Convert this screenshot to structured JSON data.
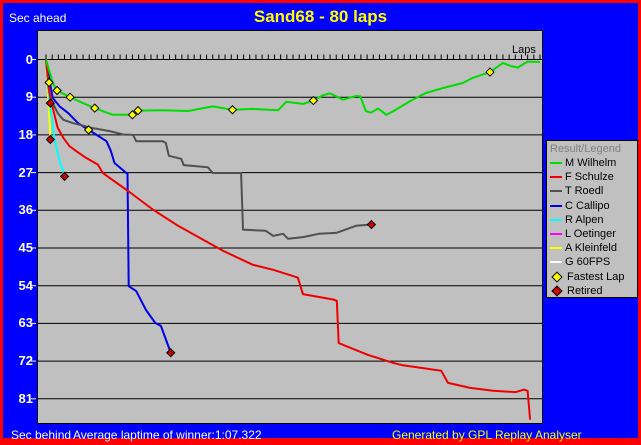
{
  "window": {
    "title": "Sand68 - 80 laps",
    "top_left_label": "Sec ahead",
    "bottom_left_label": "Sec behind",
    "average_laptime_text": "Average laptime of winner:1:07.322",
    "credit": "Generated by GPL Replay Analyser"
  },
  "colors": {
    "frame": "#FF0000",
    "background": "#0000FF",
    "plot_bg": "#C0C0C0",
    "grid": "#000000",
    "title_text": "#FFFF00",
    "label_text": "#FFFFFF",
    "legend_bg": "#C0C0C0",
    "legend_title": "#808080",
    "fastest_lap": "#FFFF00",
    "retired": "#CC0000"
  },
  "legend": {
    "title": "Result/Legend",
    "entries": [
      {
        "label": "M Wilhelm",
        "color": "#00DD00",
        "marker": "line"
      },
      {
        "label": "F Schulze",
        "color": "#EE0000",
        "marker": "line"
      },
      {
        "label": "T Roedl",
        "color": "#505050",
        "marker": "line"
      },
      {
        "label": "C Callipo",
        "color": "#0000E8",
        "marker": "line"
      },
      {
        "label": "R Alpen",
        "color": "#00FFFF",
        "marker": "line"
      },
      {
        "label": "L Oetinger",
        "color": "#FF00FF",
        "marker": "line"
      },
      {
        "label": "A Kleinfeld",
        "color": "#FFFF00",
        "marker": "line"
      },
      {
        "label": "G 60FPS",
        "color": "#FFFFFF",
        "marker": "line"
      },
      {
        "label": "Fastest Lap",
        "color": "#FFFF00",
        "marker": "diamond"
      },
      {
        "label": "Retired",
        "color": "#CC0000",
        "marker": "diamond"
      }
    ]
  },
  "chart_data": {
    "type": "line",
    "title": "Sand68 - 80 laps",
    "x_axis": {
      "label": "Laps",
      "min": 0,
      "max": 80,
      "tick_interval": 1
    },
    "y_axis": {
      "label_top": "Sec ahead",
      "label_bottom": "Sec behind",
      "ticks": [
        0,
        9,
        18,
        27,
        36,
        45,
        54,
        63,
        72,
        81
      ],
      "orientation": "seconds behind winner average, increasing downward"
    },
    "series": [
      {
        "name": "M Wilhelm",
        "color": "#00DD00",
        "points": [
          [
            0,
            0
          ],
          [
            1.1,
            5.6
          ],
          [
            1.8,
            7.4
          ],
          [
            3.9,
            9
          ],
          [
            6,
            10.4
          ],
          [
            7.9,
            11.6
          ],
          [
            10.8,
            13.2
          ],
          [
            14,
            13.2
          ],
          [
            14.9,
            12.2
          ],
          [
            18.9,
            12.1
          ],
          [
            23,
            12.3
          ],
          [
            27,
            11.2
          ],
          [
            30.2,
            12
          ],
          [
            33.5,
            11.8
          ],
          [
            37.6,
            12.1
          ],
          [
            38.9,
            10.1
          ],
          [
            41.6,
            10.6
          ],
          [
            43.3,
            9.8
          ],
          [
            44.9,
            8.5
          ],
          [
            46,
            8.1
          ],
          [
            48.1,
            9.6
          ],
          [
            50.2,
            8.7
          ],
          [
            50.9,
            8.8
          ],
          [
            51.8,
            12.3
          ],
          [
            52.6,
            12.7
          ],
          [
            53.8,
            11.7
          ],
          [
            55.1,
            13.2
          ],
          [
            56.2,
            12.4
          ],
          [
            58.9,
            10
          ],
          [
            61.5,
            8
          ],
          [
            64.3,
            6.8
          ],
          [
            67.5,
            5.6
          ],
          [
            69.1,
            4.4
          ],
          [
            71.9,
            3
          ],
          [
            74,
            0.8
          ],
          [
            75.3,
            1.6
          ],
          [
            76.4,
            1.9
          ],
          [
            78,
            0.5
          ],
          [
            80,
            0.6
          ]
        ]
      },
      {
        "name": "F Schulze",
        "color": "#EE0000",
        "points": [
          [
            0,
            0
          ],
          [
            0.5,
            7.5
          ],
          [
            0.8,
            9.9
          ],
          [
            1.1,
            11.6
          ],
          [
            1.9,
            16.3
          ],
          [
            2.8,
            18.7
          ],
          [
            3.8,
            20.7
          ],
          [
            4.9,
            21.9
          ],
          [
            6.5,
            23.5
          ],
          [
            8.4,
            25.1
          ],
          [
            9.2,
            27.1
          ],
          [
            13.3,
            31.4
          ],
          [
            17.3,
            35.8
          ],
          [
            21.4,
            39.7
          ],
          [
            24.9,
            42.6
          ],
          [
            28.7,
            45.7
          ],
          [
            33.5,
            49
          ],
          [
            36.8,
            50.2
          ],
          [
            40,
            51.7
          ],
          [
            40.8,
            52.1
          ],
          [
            41.6,
            56
          ],
          [
            46.5,
            57.3
          ],
          [
            47.1,
            57.6
          ],
          [
            47.4,
            67.7
          ],
          [
            48.1,
            68.1
          ],
          [
            52.1,
            70.5
          ],
          [
            56.2,
            72.4
          ],
          [
            57.8,
            73
          ],
          [
            64,
            74.3
          ],
          [
            65.1,
            77.2
          ],
          [
            68.7,
            78.4
          ],
          [
            72.4,
            79.1
          ],
          [
            76.1,
            79.4
          ],
          [
            77.4,
            78.8
          ],
          [
            78,
            79.1
          ],
          [
            78.4,
            86
          ]
        ]
      },
      {
        "name": "T Roedl",
        "color": "#505050",
        "points": [
          [
            0,
            0
          ],
          [
            0.6,
            8
          ],
          [
            1.1,
            10.4
          ],
          [
            1.9,
            12.8
          ],
          [
            2.8,
            14.4
          ],
          [
            4.4,
            15.2
          ],
          [
            5.5,
            15.6
          ],
          [
            7.3,
            16.3
          ],
          [
            10.3,
            17.1
          ],
          [
            12.5,
            17.9
          ],
          [
            14.1,
            18
          ],
          [
            14.6,
            19.5
          ],
          [
            18.9,
            19.5
          ],
          [
            19.4,
            19.9
          ],
          [
            19.9,
            23
          ],
          [
            21.9,
            23.7
          ],
          [
            22.3,
            25.2
          ],
          [
            26.2,
            25.7
          ],
          [
            27,
            27.1
          ],
          [
            31.6,
            27.1
          ],
          [
            31.9,
            40.6
          ],
          [
            33,
            40.7
          ],
          [
            35.6,
            40.9
          ],
          [
            36.8,
            42.1
          ],
          [
            38.4,
            41.6
          ],
          [
            39.2,
            42.8
          ],
          [
            41.6,
            42.4
          ],
          [
            44.2,
            41.6
          ],
          [
            47,
            41.4
          ],
          [
            50.2,
            39.7
          ],
          [
            52.7,
            39.4
          ]
        ]
      },
      {
        "name": "C Callipo",
        "color": "#0000E8",
        "points": [
          [
            0,
            0
          ],
          [
            0.8,
            6.8
          ],
          [
            1.1,
            9.2
          ],
          [
            2.2,
            11.2
          ],
          [
            3.6,
            12.8
          ],
          [
            5.2,
            15.2
          ],
          [
            6.9,
            16.8
          ],
          [
            8.1,
            17.9
          ],
          [
            9.8,
            19.5
          ],
          [
            10.5,
            21.8
          ],
          [
            11.1,
            24.7
          ],
          [
            13,
            27.1
          ],
          [
            13.2,
            27.1
          ],
          [
            13.4,
            54.1
          ],
          [
            13.8,
            54.5
          ],
          [
            14.6,
            55.3
          ],
          [
            16.2,
            59.8
          ],
          [
            17.7,
            62.9
          ],
          [
            18.6,
            63.6
          ],
          [
            19.8,
            68.4
          ],
          [
            20.2,
            70
          ]
        ]
      },
      {
        "name": "R Alpen",
        "color": "#00FFFF",
        "points": [
          [
            0,
            0
          ],
          [
            0.3,
            5.6
          ],
          [
            0.6,
            10.4
          ],
          [
            1,
            14.7
          ],
          [
            1.3,
            18.3
          ],
          [
            1.8,
            21.8
          ],
          [
            2.3,
            24.7
          ],
          [
            2.8,
            26.8
          ],
          [
            3,
            27.9
          ]
        ]
      },
      {
        "name": "L Oetinger",
        "color": "#FF00FF",
        "points": [
          [
            0,
            0
          ],
          [
            0.2,
            3.2
          ],
          [
            0.3,
            6.1
          ],
          [
            0.5,
            8.5
          ],
          [
            0.7,
            10.4
          ]
        ]
      },
      {
        "name": "A Kleinfeld",
        "color": "#FFFF00",
        "points": [
          [
            0,
            0
          ],
          [
            0.2,
            5.6
          ],
          [
            0.4,
            10.4
          ],
          [
            0.6,
            15.2
          ],
          [
            0.7,
            19.1
          ]
        ]
      },
      {
        "name": "G 60FPS",
        "color": "#FFFFFF",
        "points": []
      }
    ],
    "fastest_lap_markers": [
      [
        0.5,
        5.5
      ],
      [
        1.8,
        7.4
      ],
      [
        3.9,
        9
      ],
      [
        6.9,
        16.8
      ],
      [
        7.9,
        11.6
      ],
      [
        14,
        13.2
      ],
      [
        14.9,
        12.2
      ],
      [
        30.2,
        12
      ],
      [
        43.3,
        9.8
      ],
      [
        71.9,
        3
      ]
    ],
    "retired_markers": [
      [
        0.7,
        10.4
      ],
      [
        0.7,
        19.1
      ],
      [
        3,
        27.9
      ],
      [
        20.2,
        70
      ],
      [
        52.7,
        39.4
      ]
    ]
  }
}
